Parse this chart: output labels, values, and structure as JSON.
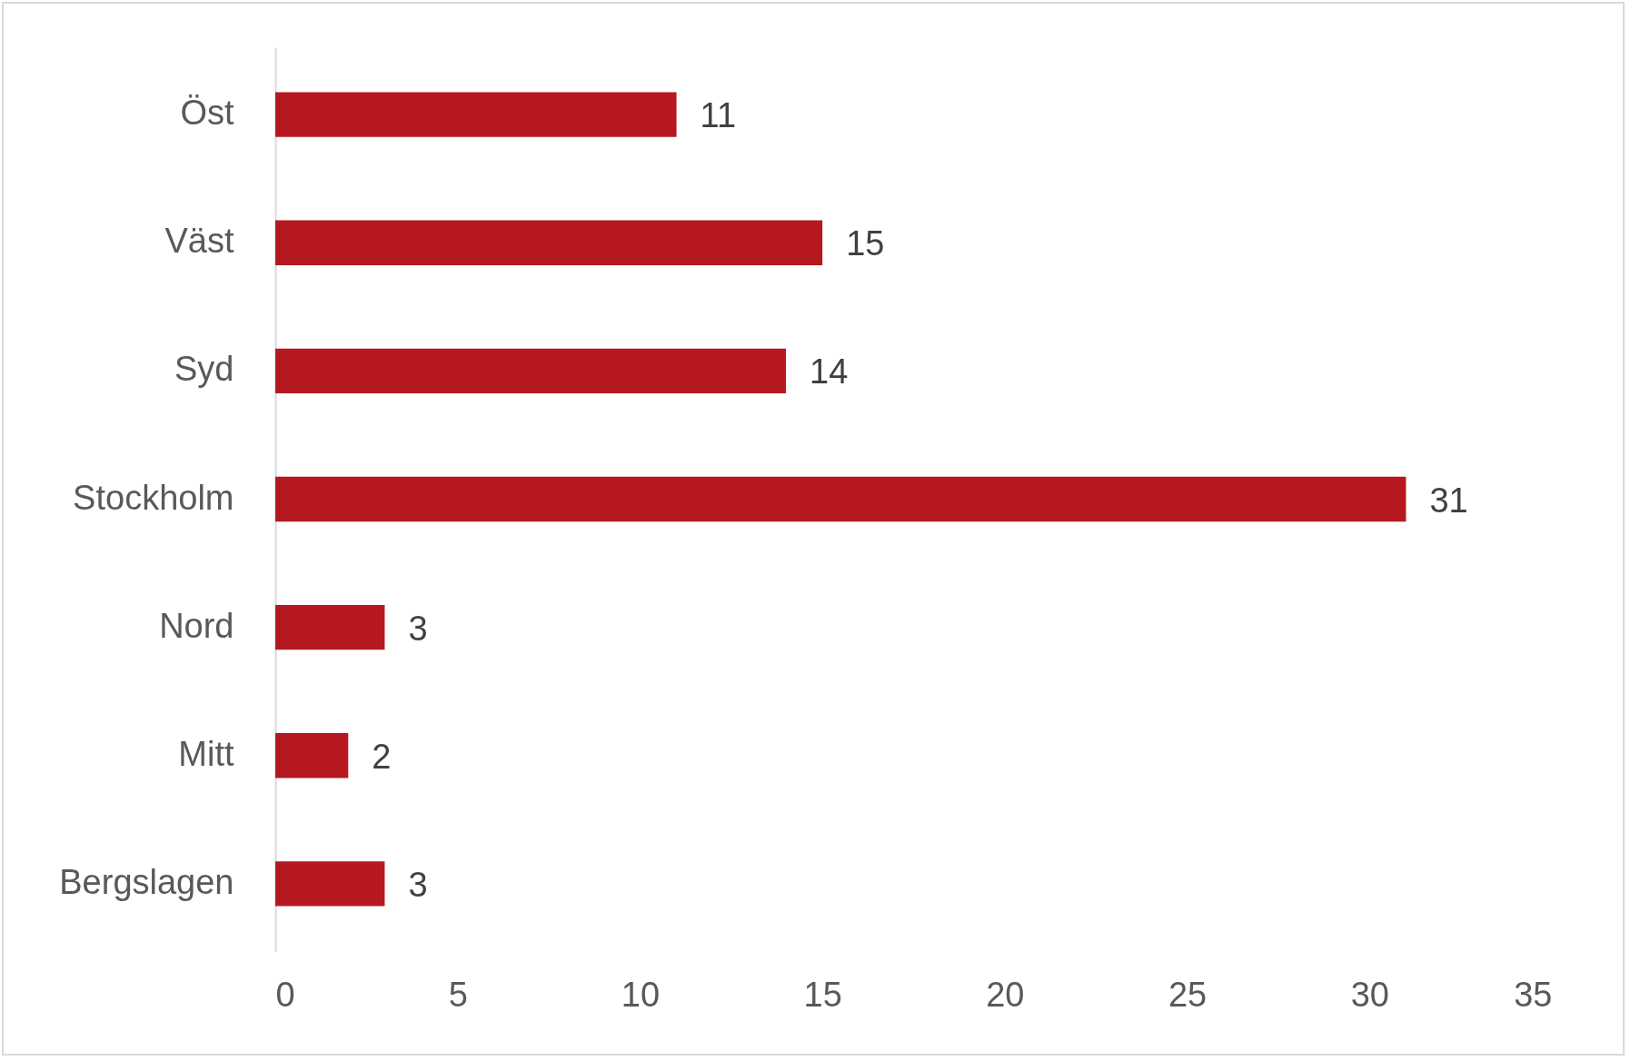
{
  "chart_data": {
    "type": "bar",
    "orientation": "horizontal",
    "categories": [
      "Öst",
      "Väst",
      "Syd",
      "Stockholm",
      "Nord",
      "Mitt",
      "Bergslagen"
    ],
    "values": [
      11,
      15,
      14,
      31,
      3,
      2,
      3
    ],
    "color": "#b5191f",
    "xlim": [
      0,
      35
    ],
    "xticks": [
      0,
      5,
      10,
      15,
      20,
      25,
      30,
      35
    ],
    "grid": false,
    "data_labels": true
  }
}
